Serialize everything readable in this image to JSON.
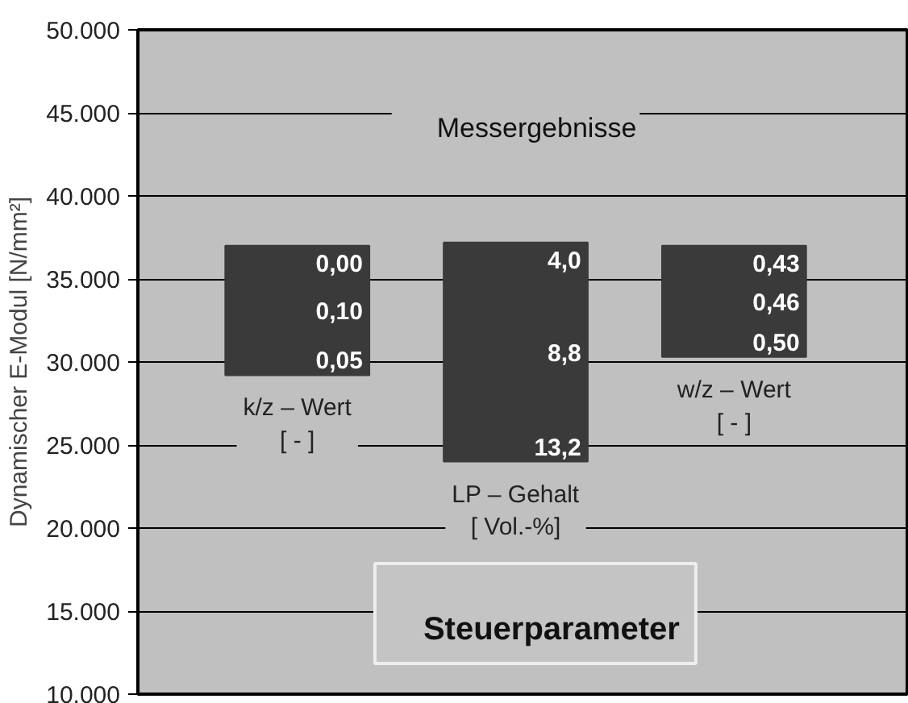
{
  "chart_data": {
    "type": "bar",
    "ylabel": "Dynamischer E-Modul [N/mm²]",
    "categories": [
      "k/z – Wert\n[ - ]",
      "LP – Gehalt\n[ Vol.-%]",
      "w/z – Wert\n[ - ]"
    ],
    "base": [
      29200,
      24000,
      30300
    ],
    "values": [
      7800,
      13200,
      6700
    ],
    "color": "#3a3a3a",
    "ylim": [
      10000,
      50000
    ],
    "yticks": [
      {
        "value": 10000,
        "label": "10.000"
      },
      {
        "value": 15000,
        "label": "15.000"
      },
      {
        "value": 20000,
        "label": "20.000"
      },
      {
        "value": 25000,
        "label": "25.000"
      },
      {
        "value": 30000,
        "label": "30.000"
      },
      {
        "value": 35000,
        "label": "35.000"
      },
      {
        "value": 40000,
        "label": "40.000"
      },
      {
        "value": 45000,
        "label": "45.000"
      },
      {
        "value": 50000,
        "label": "50.000"
      }
    ],
    "grid": "y",
    "annotations": [
      "Messergebnisse",
      "Steuerparameter",
      "0,00",
      "0,10",
      "0,05",
      "4,0",
      "8,8",
      "13,2",
      "0,43",
      "0,46",
      "0,50"
    ]
  }
}
